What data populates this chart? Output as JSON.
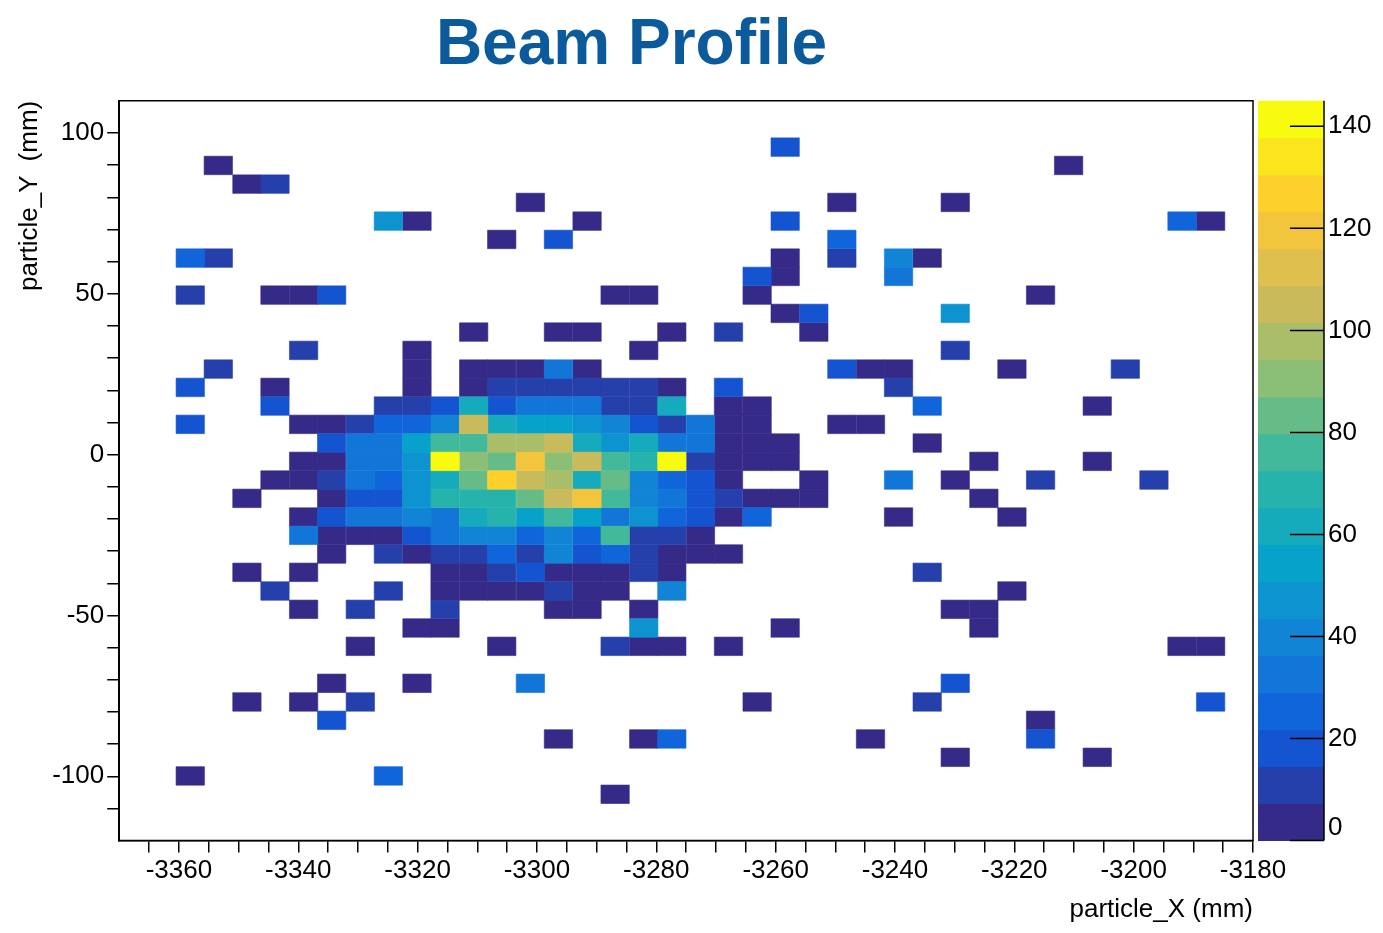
{
  "chart_data": {
    "type": "scatter",
    "title": "Beam Profile",
    "xlabel": "particle_X (mm)",
    "ylabel": "particle_Y  (mm)",
    "marker": "square",
    "series": [
      {
        "color": "#352a87",
        "x": [
          -3353.4,
          -3210.9,
          -3348.6,
          -3301.1,
          -3248.9,
          -3229.9,
          -3320.1,
          -3291.6,
          -3187.1,
          -3305.9,
          -3258.4,
          -3234.6,
          -3258.4,
          -3343.9,
          -3339.1,
          -3286.9,
          -3282.1,
          -3263.1,
          -3215.6,
          -3258.4,
          -3310.6,
          -3296.4,
          -3291.6,
          -3277.4,
          -3253.6,
          -3320.1,
          -3282.1,
          -3320.1,
          -3310.6,
          -3305.9,
          -3301.1,
          -3291.6,
          -3244.1,
          -3239.4,
          -3220.4,
          -3343.9,
          -3320.1,
          -3310.6,
          -3277.4,
          -3267.9,
          -3263.1,
          -3206.1,
          -3339.1,
          -3334.4,
          -3267.9,
          -3263.1,
          -3248.9,
          -3244.1,
          -3267.9,
          -3263.1,
          -3258.4,
          -3234.6,
          -3339.1,
          -3334.4,
          -3267.9,
          -3263.1,
          -3258.4,
          -3225.1,
          -3206.1,
          -3343.9,
          -3339.1,
          -3267.9,
          -3253.6,
          -3229.9,
          -3348.6,
          -3334.4,
          -3263.1,
          -3258.4,
          -3253.6,
          -3225.1,
          -3339.1,
          -3267.9,
          -3239.4,
          -3220.4,
          -3334.4,
          -3329.6,
          -3324.9,
          -3272.6,
          -3334.4,
          -3320.1,
          -3277.4,
          -3272.6,
          -3267.9,
          -3348.6,
          -3339.1,
          -3315.4,
          -3310.6,
          -3296.4,
          -3291.6,
          -3286.9,
          -3277.4,
          -3315.4,
          -3310.6,
          -3305.9,
          -3301.1,
          -3291.6,
          -3286.9,
          -3220.4,
          -3339.1,
          -3296.4,
          -3291.6,
          -3282.1,
          -3229.9,
          -3225.1,
          -3320.1,
          -3315.4,
          -3258.4,
          -3225.1,
          -3329.6,
          -3305.9,
          -3282.1,
          -3277.4,
          -3267.9,
          -3191.9,
          -3187.1,
          -3334.4,
          -3320.1,
          -3348.6,
          -3339.1,
          -3263.1,
          -3215.6,
          -3296.4,
          -3282.1,
          -3244.1,
          -3229.9,
          -3206.1,
          -3358.1,
          -3286.9
        ],
        "values": [
          89.9,
          89.9,
          84.1,
          78.4,
          78.4,
          78.4,
          72.6,
          72.6,
          72.6,
          66.9,
          61.1,
          61.1,
          55.4,
          49.6,
          49.6,
          49.6,
          49.6,
          49.6,
          49.6,
          43.9,
          38.1,
          38.1,
          38.1,
          38.1,
          38.1,
          32.4,
          32.4,
          26.6,
          26.6,
          26.6,
          26.6,
          26.6,
          26.6,
          26.6,
          26.6,
          20.9,
          20.9,
          20.9,
          20.9,
          15.1,
          15.1,
          15.1,
          9.4,
          9.4,
          9.4,
          9.4,
          9.4,
          9.4,
          3.6,
          3.6,
          3.6,
          3.6,
          -2.1,
          -2.1,
          -2.1,
          -2.1,
          -2.1,
          -2.1,
          -2.1,
          -7.9,
          -7.9,
          -7.9,
          -7.9,
          -7.9,
          -13.6,
          -13.6,
          -13.6,
          -13.6,
          -13.6,
          -13.6,
          -19.4,
          -19.4,
          -19.4,
          -19.4,
          -25.1,
          -25.1,
          -25.1,
          -25.1,
          -30.9,
          -30.9,
          -30.9,
          -30.9,
          -30.9,
          -36.6,
          -36.6,
          -36.6,
          -36.6,
          -36.6,
          -36.6,
          -36.6,
          -36.6,
          -42.4,
          -42.4,
          -42.4,
          -42.4,
          -42.4,
          -42.4,
          -42.4,
          -48.1,
          -48.1,
          -48.1,
          -48.1,
          -48.1,
          -48.1,
          -53.9,
          -53.9,
          -53.9,
          -53.9,
          -59.6,
          -59.6,
          -59.6,
          -59.6,
          -59.6,
          -59.6,
          -59.6,
          -71.1,
          -71.1,
          -76.9,
          -76.9,
          -76.9,
          -82.6,
          -88.4,
          -88.4,
          -88.4,
          -94.1,
          -94.1,
          -99.9,
          -105.6
        ],
        "cvalues": [
          3,
          3,
          3,
          3,
          3,
          3,
          3,
          3,
          3,
          3,
          3,
          3,
          3,
          3,
          3,
          3,
          3,
          3,
          3,
          3,
          3,
          3,
          3,
          3,
          3,
          3,
          3,
          3,
          3,
          3,
          3,
          3,
          3,
          3,
          3,
          3,
          3,
          3,
          3,
          3,
          3,
          3,
          3,
          3,
          3,
          3,
          3,
          3,
          3,
          3,
          3,
          3,
          3,
          3,
          3,
          3,
          3,
          3,
          3,
          3,
          3,
          3,
          3,
          3,
          3,
          3,
          3,
          3,
          3,
          3,
          3,
          3,
          3,
          3,
          3,
          3,
          3,
          3,
          3,
          3,
          3,
          3,
          3,
          3,
          3,
          3,
          3,
          3,
          3,
          3,
          3,
          3,
          3,
          3,
          3,
          3,
          3,
          3,
          3,
          3,
          3,
          3,
          3,
          3,
          3,
          3,
          3,
          3,
          3,
          3,
          3,
          3,
          3,
          3,
          3,
          3,
          3,
          3,
          3,
          3,
          3,
          3,
          3,
          3,
          3,
          3,
          3,
          3
        ]
      },
      {
        "color": "#253fab",
        "x": [
          -3343.9,
          -3353.4,
          -3248.9,
          -3358.1,
          -3267.9,
          -3339.1,
          -3229.9,
          -3353.4,
          -3201.4,
          -3305.9,
          -3301.1,
          -3296.4,
          -3291.6,
          -3286.9,
          -3282.1,
          -3239.4,
          -3324.9,
          -3320.1,
          -3286.9,
          -3282.1,
          -3329.6,
          -3277.4,
          -3272.6,
          -3334.4,
          -3215.6,
          -3196.6,
          -3267.9,
          -3282.1,
          -3277.4,
          -3324.9,
          -3315.4,
          -3310.6,
          -3301.1,
          -3282.1,
          -3305.9,
          -3282.1,
          -3234.6,
          -3343.9,
          -3324.9,
          -3296.4,
          -3329.6,
          -3315.4,
          -3286.9,
          -3329.6,
          -3234.6
        ],
        "values": [
          84.1,
          61.1,
          61.1,
          49.6,
          38.1,
          32.4,
          32.4,
          26.6,
          26.6,
          20.9,
          20.9,
          20.9,
          20.9,
          20.9,
          20.9,
          20.9,
          15.1,
          15.1,
          15.1,
          15.1,
          9.4,
          9.4,
          -2.1,
          -7.9,
          -7.9,
          -7.9,
          -13.6,
          -25.1,
          -25.1,
          -30.9,
          -30.9,
          -30.9,
          -30.9,
          -30.9,
          -36.6,
          -36.6,
          -36.6,
          -42.4,
          -42.4,
          -42.4,
          -48.1,
          -48.1,
          -59.6,
          -76.9,
          -76.9
        ],
        "cvalues": [
          10,
          10,
          10,
          10,
          10,
          10,
          10,
          10,
          10,
          10,
          10,
          14,
          14,
          10,
          10,
          10,
          10,
          10,
          10,
          10,
          10,
          10,
          10,
          10,
          10,
          10,
          10,
          10,
          10,
          10,
          10,
          10,
          10,
          10,
          10,
          10,
          14,
          10,
          10,
          10,
          10,
          10,
          10,
          10,
          10
        ]
      },
      {
        "color": "#1554d0",
        "x": [
          -3258.4,
          -3258.4,
          -3296.4,
          -3263.1,
          -3334.4,
          -3253.6,
          -3248.9,
          -3358.1,
          -3267.9,
          -3343.9,
          -3315.4,
          -3305.9,
          -3358.1,
          -3282.1,
          -3334.4,
          -3272.6,
          -3329.6,
          -3324.9,
          -3272.6,
          -3334.4,
          -3272.6,
          -3320.1,
          -3291.6,
          -3301.1,
          -3229.9,
          -3187.1,
          -3334.4,
          -3215.6
        ],
        "values": [
          95.6,
          72.6,
          66.9,
          55.4,
          49.6,
          43.9,
          26.6,
          20.9,
          20.9,
          15.1,
          15.1,
          15.1,
          9.4,
          9.4,
          3.6,
          -7.9,
          -13.6,
          -13.6,
          -13.6,
          -19.4,
          -19.4,
          -25.1,
          -30.9,
          -36.6,
          -71.1,
          -76.9,
          -82.6,
          -88.4
        ],
        "cvalues": [
          17,
          17,
          17,
          17,
          17,
          17,
          17,
          17,
          17,
          17,
          17,
          17,
          17,
          17,
          17,
          17,
          17,
          17,
          17,
          17,
          17,
          17,
          17,
          17,
          17,
          17,
          17,
          17
        ]
      },
      {
        "color": "#1065db",
        "x": [
          -3191.9,
          -3248.9,
          -3358.1,
          -3234.6,
          -3324.9,
          -3320.1,
          -3324.9,
          -3277.4,
          -3277.4,
          -3263.1,
          -3301.1,
          -3291.6,
          -3305.9,
          -3286.9,
          -3277.4,
          -3324.9
        ],
        "values": [
          72.6,
          66.9,
          61.1,
          15.1,
          9.4,
          9.4,
          -7.9,
          -7.9,
          -19.4,
          -19.4,
          -25.1,
          -25.1,
          -30.9,
          -30.9,
          -88.4,
          -99.9
        ],
        "cvalues": [
          28,
          28,
          28,
          28,
          28,
          28,
          28,
          28,
          28,
          28,
          28,
          28,
          28,
          28,
          28,
          28
        ]
      },
      {
        "color": "#1275d8",
        "x": [
          -3239.4,
          -3296.4,
          -3301.1,
          -3296.4,
          -3291.6,
          -3272.6,
          -3329.6,
          -3324.9,
          -3277.4,
          -3272.6,
          -3329.6,
          -3324.9,
          -3329.6,
          -3239.4,
          -3277.4,
          -3329.6,
          -3324.9,
          -3315.4,
          -3286.9,
          -3339.1,
          -3315.4,
          -3301.1
        ],
        "values": [
          55.4,
          26.6,
          15.1,
          15.1,
          15.1,
          9.4,
          3.6,
          3.6,
          3.6,
          3.6,
          -2.1,
          -2.1,
          -7.9,
          -7.9,
          -13.6,
          -19.4,
          -19.4,
          -19.4,
          -19.4,
          -25.1,
          -25.1,
          -71.1
        ],
        "cvalues": [
          33,
          30,
          30,
          30,
          30,
          33,
          30,
          30,
          30,
          33,
          30,
          30,
          33,
          30,
          33,
          30,
          33,
          33,
          33,
          30,
          33,
          30
        ]
      },
      {
        "color": "#1284d5",
        "x": [
          -3239.4,
          -3315.4,
          -3286.9,
          -3282.1,
          -3282.1,
          -3320.1,
          -3310.6,
          -3305.9,
          -3296.4,
          -3296.4,
          -3277.4
        ],
        "values": [
          61.1,
          9.4,
          9.4,
          -7.9,
          -13.6,
          -19.4,
          -25.1,
          -25.1,
          -25.1,
          -30.9,
          -42.4
        ],
        "cvalues": [
          40,
          40,
          38,
          40,
          40,
          38,
          40,
          40,
          40,
          38,
          40
        ]
      },
      {
        "color": "#0d93cf",
        "x": [
          -3324.9,
          -3229.9,
          -3291.6,
          -3286.9,
          -3320.1,
          -3320.1,
          -3320.1,
          -3282.1,
          -3282.1
        ],
        "values": [
          72.6,
          43.9,
          9.4,
          3.6,
          -2.1,
          -7.9,
          -13.6,
          -19.4,
          -53.9
        ],
        "cvalues": [
          45,
          50,
          45,
          48,
          45,
          50,
          50,
          50,
          50
        ]
      },
      {
        "color": "#07a2ca",
        "x": [
          -3301.1,
          -3296.4,
          -3320.1,
          -3301.1,
          -3291.6
        ],
        "values": [
          9.4,
          9.4,
          3.6,
          -19.4,
          -19.4
        ],
        "cvalues": [
          52,
          52,
          52,
          52,
          52
        ]
      },
      {
        "color": "#15abbc",
        "x": [
          -3310.6,
          -3277.4,
          -3305.9,
          -3291.6,
          -3282.1,
          -3315.4,
          -3291.6,
          -3310.6
        ],
        "values": [
          15.1,
          15.1,
          9.4,
          3.6,
          3.6,
          -7.9,
          -7.9,
          -19.4
        ],
        "cvalues": [
          60,
          60,
          60,
          60,
          62,
          62,
          60,
          64
        ]
      },
      {
        "color": "#26b3ac",
        "x": [
          -3282.1,
          -3315.4,
          -3310.6,
          -3305.9,
          -3305.9
        ],
        "values": [
          -2.1,
          -13.6,
          -13.6,
          -13.6,
          -19.4
        ],
        "cvalues": [
          68,
          68,
          68,
          68,
          66
        ]
      },
      {
        "color": "#41b99a",
        "x": [
          -3315.4,
          -3310.6,
          -3286.9,
          -3286.9,
          -3296.4,
          -3286.9
        ],
        "values": [
          3.6,
          3.6,
          -2.1,
          -13.6,
          -19.4,
          -25.1
        ],
        "cvalues": [
          78,
          78,
          78,
          78,
          78,
          78
        ]
      },
      {
        "color": "#64bc87",
        "x": [
          -3305.9,
          -3310.6,
          -3286.9,
          -3301.1
        ],
        "values": [
          -2.1,
          -7.9,
          -7.9,
          -13.6
        ],
        "cvalues": [
          85,
          85,
          82,
          82
        ]
      },
      {
        "color": "#8bbf75",
        "x": [
          -3310.6,
          -3296.4
        ],
        "values": [
          -2.1,
          -2.1
        ],
        "cvalues": [
          92,
          92
        ]
      },
      {
        "color": "#aabd69",
        "x": [
          -3305.9,
          -3301.1,
          -3296.4
        ],
        "values": [
          3.6,
          3.6,
          -7.9
        ],
        "cvalues": [
          100,
          100,
          100
        ]
      },
      {
        "color": "#c9bb5c",
        "x": [
          -3310.6,
          -3296.4,
          -3291.6,
          -3301.1,
          -3296.4
        ],
        "values": [
          9.4,
          3.6,
          -2.1,
          -7.9,
          -13.6
        ],
        "cvalues": [
          108,
          108,
          108,
          108,
          108
        ]
      },
      {
        "color": "#f2c53c",
        "x": [
          -3301.1,
          -3291.6
        ],
        "values": [
          -2.1,
          -13.6
        ],
        "cvalues": [
          118,
          118
        ]
      },
      {
        "color": "#fdd02c",
        "x": [
          -3305.9
        ],
        "values": [
          -7.9
        ],
        "cvalues": [
          128
        ]
      },
      {
        "color": "#f9fb0e",
        "x": [
          -3315.4,
          -3277.4
        ],
        "values": [
          -2.1,
          -2.1
        ],
        "cvalues": [
          143,
          143
        ]
      }
    ],
    "xlim": [
      -3370,
      -3180
    ],
    "xticks": [
      {
        "value": -3365,
        "label": null
      },
      -3360,
      {
        "value": -3355,
        "label": null
      },
      {
        "value": -3350,
        "label": null
      },
      {
        "value": -3345,
        "label": null
      },
      -3340,
      {
        "value": -3335,
        "label": null
      },
      {
        "value": -3330,
        "label": null
      },
      {
        "value": -3325,
        "label": null
      },
      -3320,
      {
        "value": -3315,
        "label": null
      },
      {
        "value": -3310,
        "label": null
      },
      {
        "value": -3305,
        "label": null
      },
      -3300,
      {
        "value": -3295,
        "label": null
      },
      {
        "value": -3290,
        "label": null
      },
      {
        "value": -3285,
        "label": null
      },
      -3280,
      {
        "value": -3275,
        "label": null
      },
      {
        "value": -3270,
        "label": null
      },
      {
        "value": -3265,
        "label": null
      },
      -3260,
      {
        "value": -3255,
        "label": null
      },
      {
        "value": -3250,
        "label": null
      },
      {
        "value": -3245,
        "label": null
      },
      -3240,
      {
        "value": -3235,
        "label": null
      },
      {
        "value": -3230,
        "label": null
      },
      {
        "value": -3225,
        "label": null
      },
      -3220,
      {
        "value": -3215,
        "label": null
      },
      {
        "value": -3210,
        "label": null
      },
      {
        "value": -3205,
        "label": null
      },
      -3200,
      {
        "value": -3195,
        "label": null
      },
      {
        "value": -3190,
        "label": null
      },
      {
        "value": -3185,
        "label": null
      },
      -3180
    ],
    "ylim": [
      -120,
      110
    ],
    "yticks": [
      {
        "value": -110,
        "label": null
      },
      -100,
      {
        "value": -90,
        "label": null
      },
      {
        "value": -80,
        "label": null
      },
      {
        "value": -70,
        "label": null
      },
      {
        "value": -60,
        "label": null
      },
      -50,
      {
        "value": -40,
        "label": null
      },
      {
        "value": -30,
        "label": null
      },
      {
        "value": -20,
        "label": null
      },
      {
        "value": -10,
        "label": null
      },
      0,
      {
        "value": 10,
        "label": null
      },
      {
        "value": 20,
        "label": null
      },
      {
        "value": 30,
        "label": null
      },
      {
        "value": 40,
        "label": null
      },
      50,
      {
        "value": 60,
        "label": null
      },
      {
        "value": 70,
        "label": null
      },
      {
        "value": 80,
        "label": null
      },
      {
        "value": 90,
        "label": null
      },
      100
    ],
    "clim": [
      0,
      145
    ],
    "cticks": [
      0,
      20,
      40,
      60,
      80,
      100,
      120,
      140
    ]
  }
}
